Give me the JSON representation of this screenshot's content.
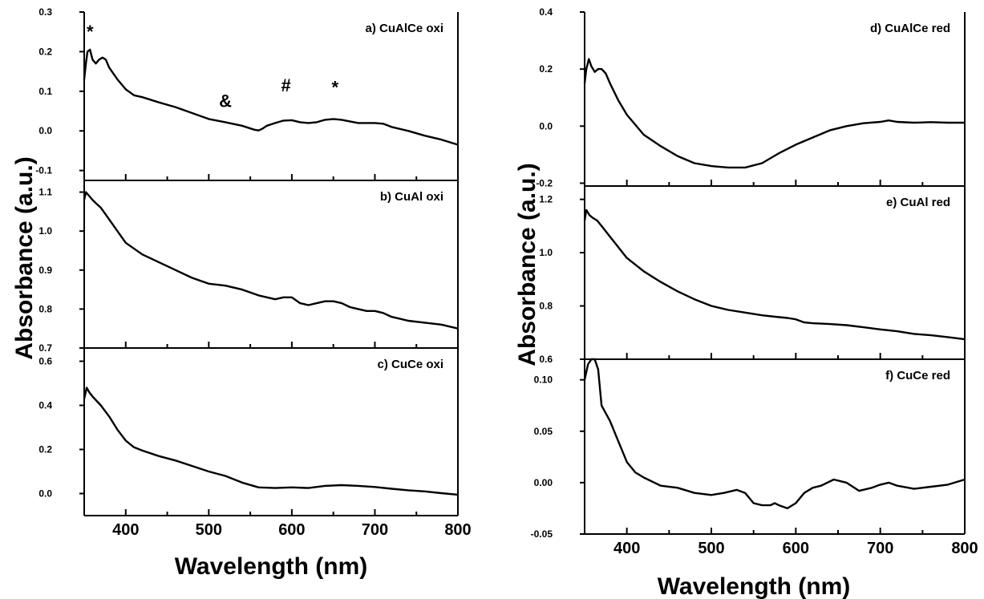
{
  "figure": {
    "y_axis_title": "Absorbance (a.u.)",
    "x_axis_title": "Wavelength (nm)"
  },
  "chart_data": [
    {
      "type": "line",
      "panel_label": "a) CuAlCe oxi",
      "xlabel": "Wavelength (nm)",
      "ylabel": "Absorbance (a.u.)",
      "xlim": [
        350,
        800
      ],
      "ylim": [
        -0.125,
        0.3
      ],
      "x_ticks": [
        400,
        500,
        600,
        700,
        800
      ],
      "y_ticks": [
        -0.1,
        0.0,
        0.1,
        0.2,
        0.3
      ],
      "y_tick_labels": [
        "-0.1",
        "0.0",
        "0.1",
        "0.2",
        "0.3"
      ],
      "annotations": [
        {
          "text": "*",
          "x": 357,
          "y": 0.235
        },
        {
          "text": "&",
          "x": 520,
          "y": 0.06
        },
        {
          "text": "#",
          "x": 593,
          "y": 0.1
        },
        {
          "text": "*",
          "x": 652,
          "y": 0.095
        }
      ],
      "series": [
        {
          "x": [
            350,
            352,
            354,
            357,
            360,
            364,
            368,
            372,
            376,
            380,
            390,
            400,
            410,
            420,
            440,
            460,
            480,
            500,
            520,
            540,
            555,
            560,
            565,
            570,
            580,
            590,
            600,
            610,
            620,
            630,
            640,
            650,
            660,
            670,
            680,
            690,
            700,
            710,
            720,
            740,
            760,
            780,
            800
          ],
          "y": [
            0.13,
            0.17,
            0.2,
            0.205,
            0.18,
            0.17,
            0.18,
            0.185,
            0.18,
            0.16,
            0.13,
            0.105,
            0.09,
            0.085,
            0.072,
            0.06,
            0.045,
            0.03,
            0.022,
            0.013,
            0.003,
            0.001,
            0.006,
            0.013,
            0.02,
            0.026,
            0.027,
            0.022,
            0.02,
            0.022,
            0.028,
            0.03,
            0.028,
            0.024,
            0.02,
            0.02,
            0.02,
            0.018,
            0.01,
            0.0,
            -0.012,
            -0.022,
            -0.035
          ]
        }
      ]
    },
    {
      "type": "line",
      "panel_label": "b) CuAl oxi",
      "xlabel": "Wavelength (nm)",
      "ylabel": "Absorbance (a.u.)",
      "xlim": [
        350,
        800
      ],
      "ylim": [
        0.7,
        1.13
      ],
      "x_ticks": [
        400,
        500,
        600,
        700,
        800
      ],
      "y_ticks": [
        0.7,
        0.8,
        0.9,
        1.0,
        1.1
      ],
      "y_tick_labels": [
        "0.7",
        "0.8",
        "0.9",
        "1.0",
        "1.1"
      ],
      "series": [
        {
          "x": [
            350,
            352,
            356,
            360,
            365,
            370,
            380,
            390,
            400,
            420,
            440,
            460,
            480,
            500,
            520,
            540,
            560,
            580,
            590,
            600,
            610,
            620,
            630,
            640,
            650,
            660,
            670,
            680,
            690,
            700,
            710,
            720,
            740,
            760,
            780,
            800
          ],
          "y": [
            1.08,
            1.1,
            1.09,
            1.08,
            1.07,
            1.06,
            1.03,
            1.0,
            0.97,
            0.94,
            0.92,
            0.9,
            0.88,
            0.865,
            0.86,
            0.85,
            0.835,
            0.825,
            0.83,
            0.83,
            0.815,
            0.81,
            0.815,
            0.82,
            0.82,
            0.815,
            0.805,
            0.8,
            0.795,
            0.795,
            0.79,
            0.78,
            0.77,
            0.765,
            0.76,
            0.75
          ]
        }
      ]
    },
    {
      "type": "line",
      "panel_label": "c) CuCe oxi",
      "xlabel": "Wavelength (nm)",
      "ylabel": "Absorbance (a.u.)",
      "xlim": [
        350,
        800
      ],
      "ylim": [
        -0.1,
        0.66
      ],
      "x_ticks": [
        400,
        500,
        600,
        700,
        800
      ],
      "x_tick_labels": [
        "400",
        "500",
        "600",
        "700",
        "800"
      ],
      "y_ticks": [
        0.0,
        0.2,
        0.4,
        0.6
      ],
      "y_tick_labels": [
        "0.0",
        "0.2",
        "0.4",
        "0.6"
      ],
      "series": [
        {
          "x": [
            350,
            353,
            356,
            360,
            370,
            380,
            390,
            400,
            410,
            420,
            440,
            460,
            480,
            500,
            520,
            540,
            560,
            580,
            600,
            620,
            640,
            660,
            680,
            700,
            720,
            740,
            760,
            780,
            800
          ],
          "y": [
            0.43,
            0.48,
            0.46,
            0.44,
            0.4,
            0.35,
            0.29,
            0.24,
            0.21,
            0.195,
            0.17,
            0.15,
            0.125,
            0.1,
            0.08,
            0.05,
            0.028,
            0.025,
            0.028,
            0.025,
            0.035,
            0.038,
            0.035,
            0.03,
            0.022,
            0.015,
            0.01,
            0.002,
            -0.005
          ]
        }
      ]
    },
    {
      "type": "line",
      "panel_label": "d) CuAlCe red",
      "xlabel": "Wavelength (nm)",
      "ylabel": "Absorbance (a.u.)",
      "xlim": [
        350,
        800
      ],
      "ylim": [
        -0.21,
        0.4
      ],
      "x_ticks": [
        400,
        500,
        600,
        700,
        800
      ],
      "y_ticks": [
        -0.2,
        0.0,
        0.2,
        0.4
      ],
      "y_tick_labels": [
        "-0.2",
        "0.0",
        "0.2",
        "0.4"
      ],
      "series": [
        {
          "x": [
            350,
            352,
            355,
            358,
            362,
            366,
            370,
            375,
            380,
            390,
            400,
            420,
            440,
            460,
            480,
            500,
            520,
            540,
            560,
            580,
            600,
            620,
            640,
            660,
            680,
            700,
            710,
            720,
            740,
            760,
            780,
            800
          ],
          "y": [
            0.15,
            0.2,
            0.235,
            0.21,
            0.19,
            0.2,
            0.2,
            0.185,
            0.15,
            0.09,
            0.04,
            -0.03,
            -0.07,
            -0.105,
            -0.13,
            -0.14,
            -0.145,
            -0.145,
            -0.13,
            -0.095,
            -0.065,
            -0.04,
            -0.015,
            0.0,
            0.01,
            0.015,
            0.02,
            0.015,
            0.012,
            0.014,
            0.012,
            0.012
          ]
        }
      ]
    },
    {
      "type": "line",
      "panel_label": "e) CuAl red",
      "xlabel": "Wavelength (nm)",
      "ylabel": "Absorbance (a.u.)",
      "xlim": [
        350,
        800
      ],
      "ylim": [
        0.6,
        1.25
      ],
      "x_ticks": [
        400,
        500,
        600,
        700,
        800
      ],
      "y_ticks": [
        0.6,
        0.8,
        1.0,
        1.2
      ],
      "y_tick_labels": [
        "0.6",
        "0.8",
        "1.0",
        "1.2"
      ],
      "series": [
        {
          "x": [
            350,
            352,
            356,
            360,
            365,
            370,
            380,
            390,
            400,
            420,
            440,
            460,
            480,
            500,
            520,
            540,
            560,
            580,
            590,
            600,
            610,
            620,
            640,
            660,
            680,
            700,
            720,
            740,
            760,
            780,
            800
          ],
          "y": [
            1.12,
            1.16,
            1.14,
            1.13,
            1.12,
            1.1,
            1.06,
            1.02,
            0.98,
            0.93,
            0.89,
            0.855,
            0.825,
            0.8,
            0.785,
            0.775,
            0.765,
            0.758,
            0.755,
            0.75,
            0.738,
            0.735,
            0.732,
            0.728,
            0.72,
            0.712,
            0.705,
            0.695,
            0.69,
            0.683,
            0.675
          ]
        }
      ]
    },
    {
      "type": "line",
      "panel_label": "f) CuCe red",
      "xlabel": "Wavelength (nm)",
      "ylabel": "Absorbance (a.u.)",
      "xlim": [
        350,
        800
      ],
      "ylim": [
        -0.05,
        0.12
      ],
      "x_ticks": [
        400,
        500,
        600,
        700,
        800
      ],
      "x_tick_labels": [
        "400",
        "500",
        "600",
        "700",
        "800"
      ],
      "y_ticks": [
        -0.05,
        0.0,
        0.05,
        0.1
      ],
      "y_tick_labels": [
        "-0.05",
        "0.00",
        "0.05",
        "0.10"
      ],
      "series": [
        {
          "x": [
            350,
            354,
            358,
            362,
            366,
            370,
            380,
            390,
            400,
            410,
            420,
            440,
            460,
            480,
            500,
            515,
            530,
            540,
            550,
            560,
            570,
            575,
            580,
            590,
            600,
            610,
            620,
            630,
            645,
            660,
            675,
            690,
            700,
            710,
            720,
            740,
            760,
            780,
            800
          ],
          "y": [
            0.1,
            0.115,
            0.12,
            0.12,
            0.11,
            0.075,
            0.06,
            0.04,
            0.02,
            0.01,
            0.005,
            -0.003,
            -0.005,
            -0.01,
            -0.012,
            -0.01,
            -0.007,
            -0.01,
            -0.02,
            -0.022,
            -0.022,
            -0.02,
            -0.022,
            -0.025,
            -0.02,
            -0.01,
            -0.005,
            -0.003,
            0.003,
            0.0,
            -0.008,
            -0.005,
            -0.002,
            0.0,
            -0.003,
            -0.006,
            -0.004,
            -0.002,
            0.003
          ]
        }
      ]
    }
  ]
}
